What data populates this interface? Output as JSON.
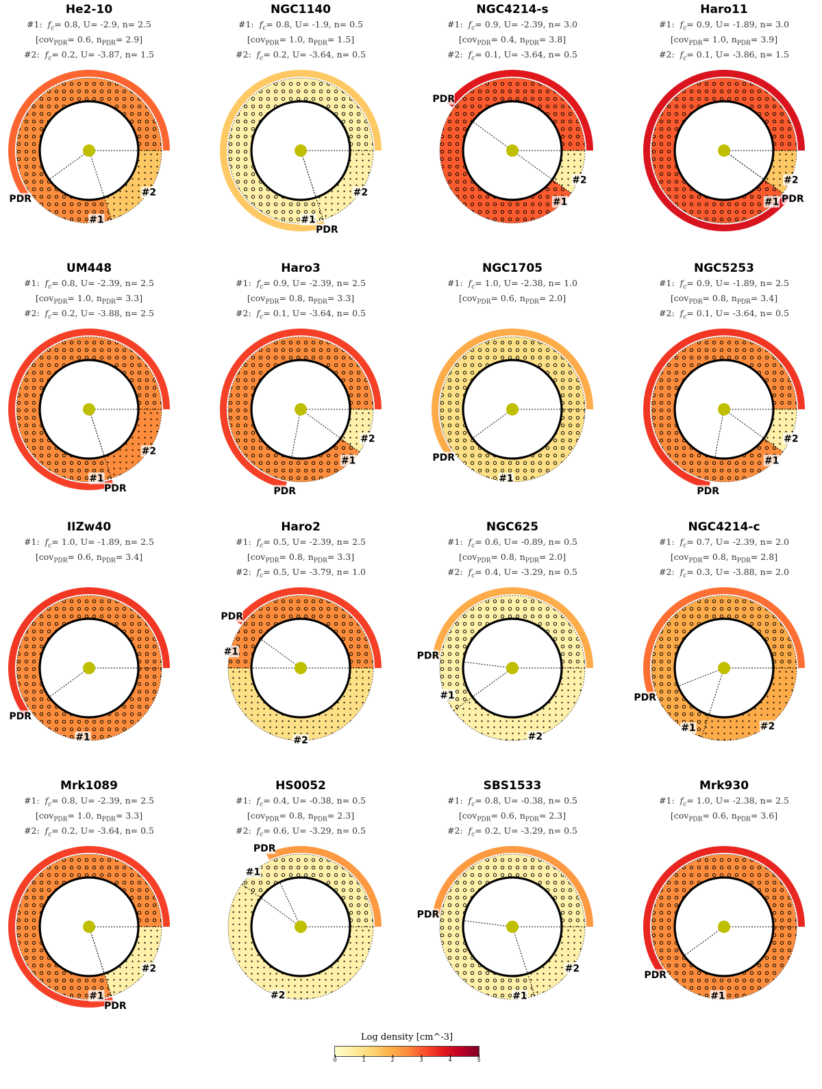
{
  "colorbar": {
    "title": "Log density [cm^-3]",
    "ticks": [
      "0",
      "1",
      "2",
      "3",
      "4",
      "5"
    ],
    "colors": [
      "#ffffcc",
      "#ffeda0",
      "#fed976",
      "#feb24c",
      "#fd8d3c",
      "#fc4e2a",
      "#e31a1c",
      "#bd0026",
      "#800026"
    ]
  },
  "labels": {
    "pdr": "PDR",
    "comp1": "#1",
    "comp2": "#2"
  },
  "panels": [
    {
      "name": "He2-10",
      "c1": {
        "fc": "0.8",
        "U": "-2.9",
        "n": "2.5"
      },
      "cov": "0.6",
      "npdr": "2.9",
      "c2": {
        "fc": "0.2",
        "U": "-3.87",
        "n": "1.5"
      },
      "f1": 0.8,
      "n1": 2.5,
      "n2": 1.5,
      "pdr_cov": 0.6,
      "pdr_n": 2.9
    },
    {
      "name": "NGC1140",
      "c1": {
        "fc": "0.8",
        "U": "-1.9",
        "n": "0.5"
      },
      "cov": "1.0",
      "npdr": "1.5",
      "c2": {
        "fc": "0.2",
        "U": "-3.64",
        "n": "0.5"
      },
      "f1": 0.8,
      "n1": 0.5,
      "n2": 0.5,
      "pdr_cov": 0.8,
      "pdr_n": 1.5
    },
    {
      "name": "NGC4214-s",
      "c1": {
        "fc": "0.9",
        "U": "-2.39",
        "n": "3.0"
      },
      "cov": "0.4",
      "npdr": "3.8",
      "c2": {
        "fc": "0.1",
        "U": "-3.64",
        "n": "0.5"
      },
      "f1": 0.9,
      "n1": 3.0,
      "n2": 0.5,
      "pdr_cov": 0.4,
      "pdr_n": 3.8
    },
    {
      "name": "Haro11",
      "c1": {
        "fc": "0.9",
        "U": "-1.89",
        "n": "3.0"
      },
      "cov": "1.0",
      "npdr": "3.9",
      "c2": {
        "fc": "0.1",
        "U": "-3.86",
        "n": "1.5"
      },
      "f1": 0.9,
      "n1": 3.0,
      "n2": 1.5,
      "pdr_cov": 0.9,
      "pdr_n": 3.9
    },
    {
      "name": "UM448",
      "c1": {
        "fc": "0.8",
        "U": "-2.39",
        "n": "2.5"
      },
      "cov": "1.0",
      "npdr": "3.3",
      "c2": {
        "fc": "0.2",
        "U": "-3.88",
        "n": "2.5"
      },
      "f1": 0.8,
      "n1": 2.5,
      "n2": 2.5,
      "pdr_cov": 0.8,
      "pdr_n": 3.3
    },
    {
      "name": "Haro3",
      "c1": {
        "fc": "0.9",
        "U": "-2.39",
        "n": "2.5"
      },
      "cov": "0.8",
      "npdr": "3.3",
      "c2": {
        "fc": "0.1",
        "U": "-3.64",
        "n": "0.5"
      },
      "f1": 0.9,
      "n1": 2.5,
      "n2": 0.5,
      "pdr_cov": 0.72,
      "pdr_n": 3.3
    },
    {
      "name": "NGC1705",
      "c1": {
        "fc": "1.0",
        "U": "-2.38",
        "n": "1.0"
      },
      "cov": "0.6",
      "npdr": "2.0",
      "c2": null,
      "f1": 1.0,
      "n1": 1.0,
      "n2": null,
      "pdr_cov": 0.6,
      "pdr_n": 2.0
    },
    {
      "name": "NGC5253",
      "c1": {
        "fc": "0.9",
        "U": "-1.89",
        "n": "2.5"
      },
      "cov": "0.8",
      "npdr": "3.4",
      "c2": {
        "fc": "0.1",
        "U": "-3.64",
        "n": "0.5"
      },
      "f1": 0.9,
      "n1": 2.5,
      "n2": 0.5,
      "pdr_cov": 0.72,
      "pdr_n": 3.4
    },
    {
      "name": "IIZw40",
      "c1": {
        "fc": "1.0",
        "U": "-1.89",
        "n": "2.5"
      },
      "cov": "0.6",
      "npdr": "3.4",
      "c2": null,
      "f1": 1.0,
      "n1": 2.5,
      "n2": null,
      "pdr_cov": 0.6,
      "pdr_n": 3.4
    },
    {
      "name": "Haro2",
      "c1": {
        "fc": "0.5",
        "U": "-2.39",
        "n": "2.5"
      },
      "cov": "0.8",
      "npdr": "3.3",
      "c2": {
        "fc": "0.5",
        "U": "-3.79",
        "n": "1.0"
      },
      "f1": 0.5,
      "n1": 2.5,
      "n2": 1.0,
      "pdr_cov": 0.4,
      "pdr_n": 3.3
    },
    {
      "name": "NGC625",
      "c1": {
        "fc": "0.6",
        "U": "-0.89",
        "n": "0.5"
      },
      "cov": "0.8",
      "npdr": "2.0",
      "c2": {
        "fc": "0.4",
        "U": "-3.29",
        "n": "0.5"
      },
      "f1": 0.6,
      "n1": 0.5,
      "n2": 0.5,
      "pdr_cov": 0.48,
      "pdr_n": 2.0
    },
    {
      "name": "NGC4214-c",
      "c1": {
        "fc": "0.7",
        "U": "-2.39",
        "n": "2.0"
      },
      "cov": "0.8",
      "npdr": "2.8",
      "c2": {
        "fc": "0.3",
        "U": "-3.88",
        "n": "2.0"
      },
      "f1": 0.7,
      "n1": 2.0,
      "n2": 2.0,
      "pdr_cov": 0.56,
      "pdr_n": 2.8
    },
    {
      "name": "Mrk1089",
      "c1": {
        "fc": "0.8",
        "U": "-2.39",
        "n": "2.5"
      },
      "cov": "1.0",
      "npdr": "3.3",
      "c2": {
        "fc": "0.2",
        "U": "-3.64",
        "n": "0.5"
      },
      "f1": 0.8,
      "n1": 2.5,
      "n2": 0.5,
      "pdr_cov": 0.8,
      "pdr_n": 3.3
    },
    {
      "name": "HS0052",
      "c1": {
        "fc": "0.4",
        "U": "-0.38",
        "n": "0.5"
      },
      "cov": "0.8",
      "npdr": "2.3",
      "c2": {
        "fc": "0.6",
        "U": "-3.29",
        "n": "0.5"
      },
      "f1": 0.4,
      "n1": 0.5,
      "n2": 0.5,
      "pdr_cov": 0.32,
      "pdr_n": 2.3
    },
    {
      "name": "SBS1533",
      "c1": {
        "fc": "0.8",
        "U": "-0.38",
        "n": "0.5"
      },
      "cov": "0.6",
      "npdr": "2.3",
      "c2": {
        "fc": "0.2",
        "U": "-3.29",
        "n": "0.5"
      },
      "f1": 0.8,
      "n1": 0.5,
      "n2": 0.5,
      "pdr_cov": 0.48,
      "pdr_n": 2.3
    },
    {
      "name": "Mrk930",
      "c1": {
        "fc": "1.0",
        "U": "-2.38",
        "n": "2.5"
      },
      "cov": "0.6",
      "npdr": "3.6",
      "c2": null,
      "f1": 1.0,
      "n1": 2.5,
      "n2": null,
      "pdr_cov": 0.6,
      "pdr_n": 3.6
    }
  ]
}
